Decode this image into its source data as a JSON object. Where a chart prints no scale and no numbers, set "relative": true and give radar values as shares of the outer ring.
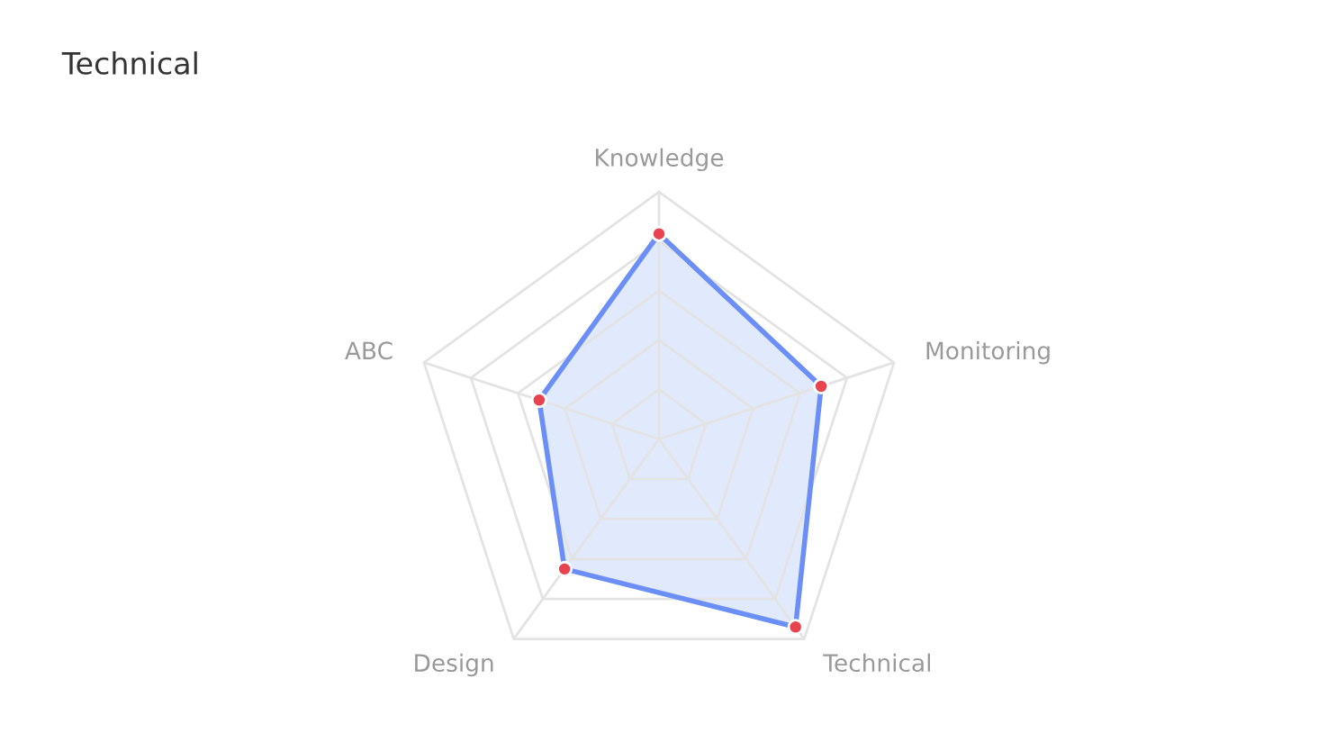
{
  "chart_data": {
    "type": "radar",
    "title": "Technical",
    "relative": true,
    "grid": true,
    "marker": "circle",
    "line_style": "solid",
    "categories": [
      "Knowledge",
      "Monitoring",
      "Technical",
      "Design",
      "ABC"
    ],
    "series": [
      {
        "color": "#6b8ff7",
        "values": [
          0.83,
          0.69,
          0.94,
          0.65,
          0.51
        ]
      }
    ]
  }
}
